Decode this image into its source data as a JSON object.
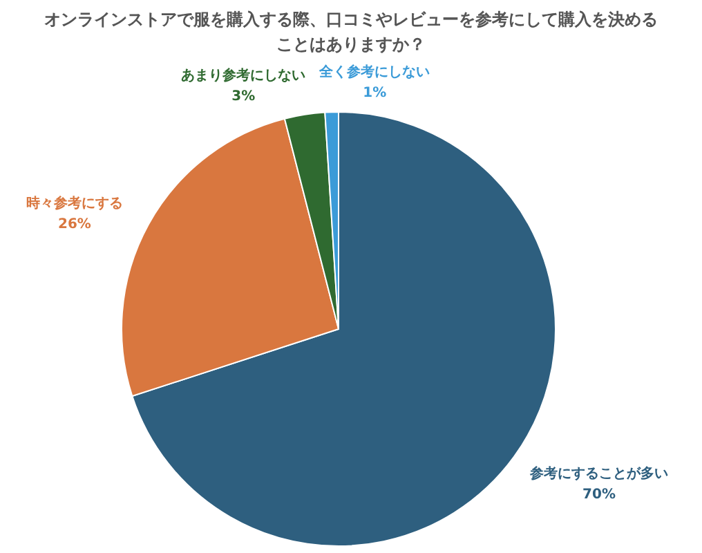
{
  "chart_data": {
    "type": "pie",
    "title": "オンラインストアで服を購入する際、口コミやレビューを参考にして購入を決めることはありますか？",
    "categories": [
      "参考にすることが多い",
      "時々参考にする",
      "あまり参考にしない",
      "全く参考にしない"
    ],
    "values": [
      70,
      26,
      3,
      1
    ],
    "colors": [
      "#2e5f7f",
      "#d9773f",
      "#2f6a30",
      "#3b9bd8"
    ],
    "value_labels": [
      "70%",
      "26%",
      "3%",
      "1%"
    ]
  }
}
